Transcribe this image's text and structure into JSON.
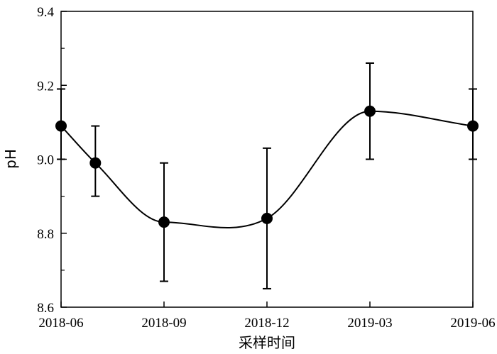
{
  "chart_data": {
    "type": "line",
    "xlabel": "采样时间",
    "ylabel": "pH",
    "x_tick_labels": [
      "2018-06",
      "2018-09",
      "2018-12",
      "2019-03",
      "2019-06"
    ],
    "y_tick_labels": [
      "8.6",
      "8.8",
      "9.0",
      "9.2",
      "9.4"
    ],
    "ylim": [
      8.6,
      9.4
    ],
    "xlim_months": [
      0,
      12
    ],
    "grid": false,
    "legend": "none",
    "series": [
      {
        "marker": "filled-circle",
        "smooth_curve": true,
        "error_bars": true,
        "points": [
          {
            "x": "2018-06",
            "y": 9.09,
            "err_low": 9.0,
            "err_high": 9.19
          },
          {
            "x": "2018-07",
            "y": 8.99,
            "err_low": 8.9,
            "err_high": 9.09
          },
          {
            "x": "2018-09",
            "y": 8.83,
            "err_low": 8.67,
            "err_high": 8.99
          },
          {
            "x": "2018-12",
            "y": 8.84,
            "err_low": 8.65,
            "err_high": 9.03
          },
          {
            "x": "2019-03",
            "y": 9.13,
            "err_low": 9.0,
            "err_high": 9.26
          },
          {
            "x": "2019-06",
            "y": 9.09,
            "err_low": 9.0,
            "err_high": 9.19
          }
        ]
      }
    ],
    "colors": {
      "line": "#000000",
      "marker": "#000000"
    }
  }
}
